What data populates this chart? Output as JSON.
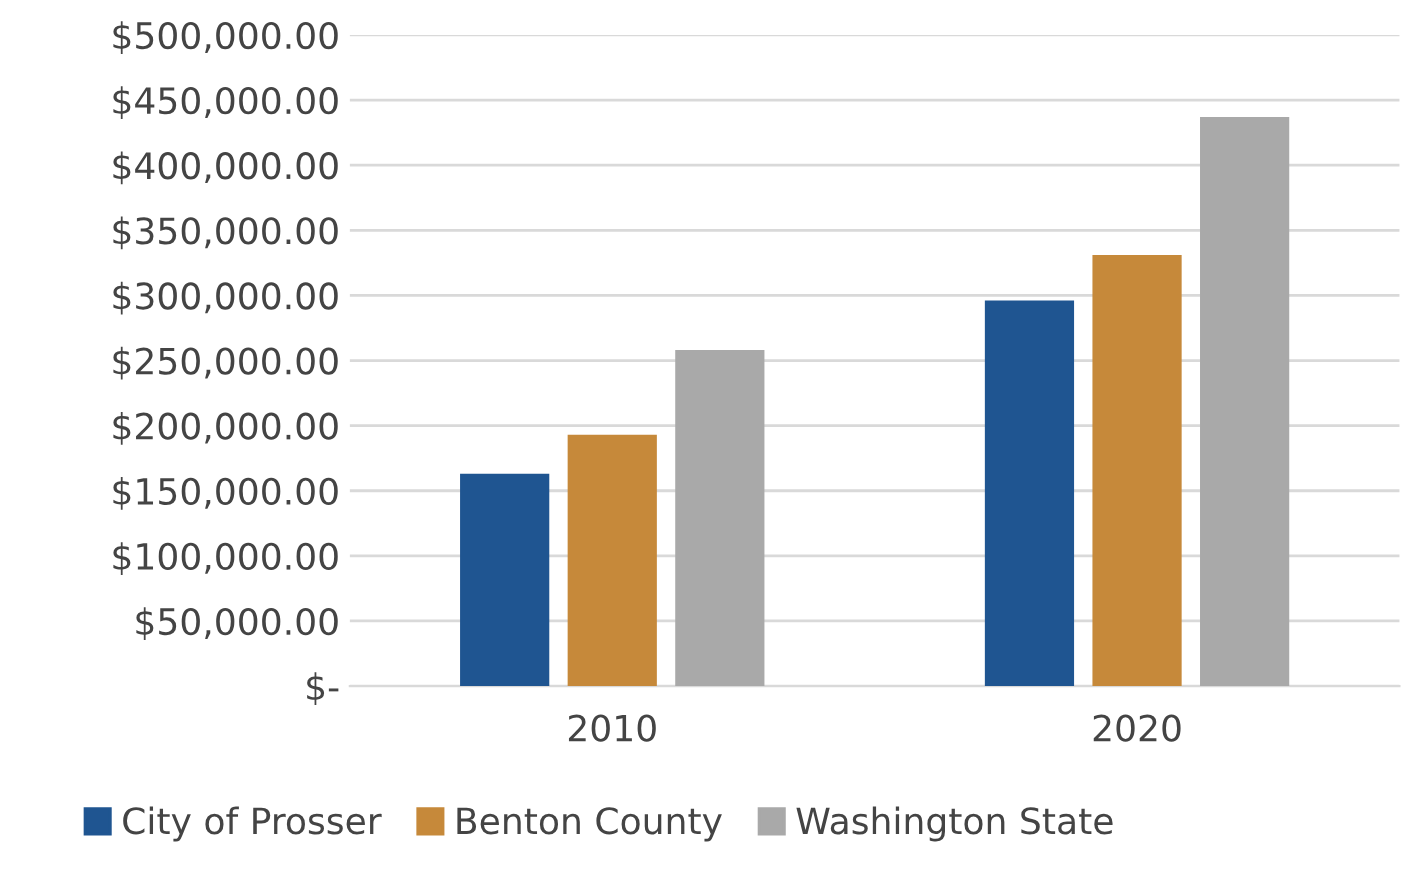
{
  "chart_data": {
    "type": "bar",
    "categories": [
      "2010",
      "2020"
    ],
    "series": [
      {
        "name": "City of Prosser",
        "color": "#1f5591",
        "values": [
          163000,
          296000
        ]
      },
      {
        "name": "Benton County",
        "color": "#c6893a",
        "values": [
          193000,
          331000
        ]
      },
      {
        "name": "Washington State",
        "color": "#a9a9a9",
        "values": [
          258000,
          437000
        ]
      }
    ],
    "ylim": [
      0,
      500000
    ],
    "yticks": [
      {
        "value": 0,
        "label": "$-"
      },
      {
        "value": 50000,
        "label": "$50,000.00"
      },
      {
        "value": 100000,
        "label": "$100,000.00"
      },
      {
        "value": 150000,
        "label": "$150,000.00"
      },
      {
        "value": 200000,
        "label": "$200,000.00"
      },
      {
        "value": 250000,
        "label": "$250,000.00"
      },
      {
        "value": 300000,
        "label": "$300,000.00"
      },
      {
        "value": 350000,
        "label": "$350,000.00"
      },
      {
        "value": 400000,
        "label": "$400,000.00"
      },
      {
        "value": 450000,
        "label": "$450,000.00"
      },
      {
        "value": 500000,
        "label": "$500,000.00"
      }
    ],
    "grid": "y",
    "legend": "bottom"
  }
}
